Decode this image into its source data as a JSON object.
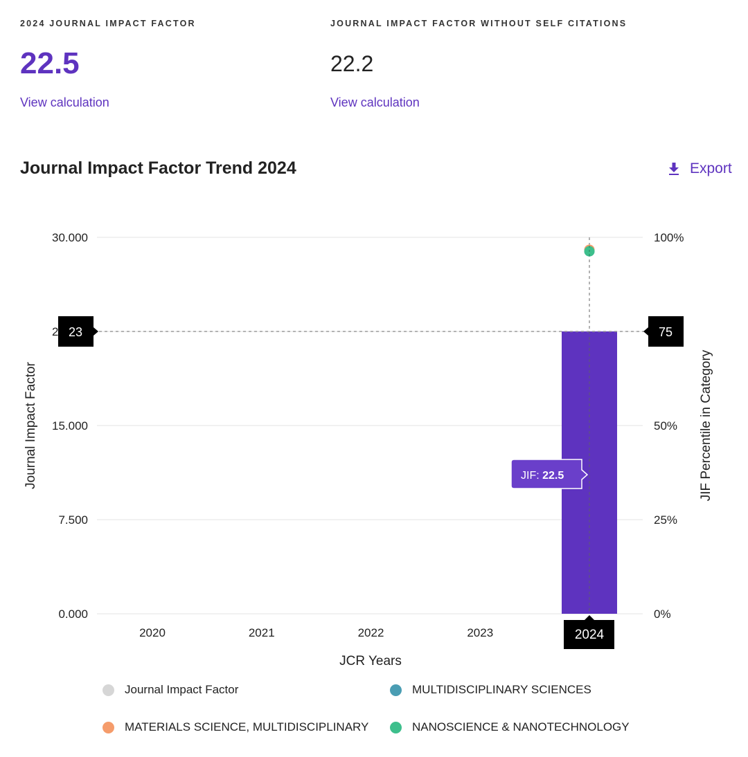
{
  "metrics": [
    {
      "label": "2024 JOURNAL IMPACT FACTOR",
      "value": "22.5",
      "link": "View calculation"
    },
    {
      "label": "JOURNAL IMPACT FACTOR WITHOUT SELF CITATIONS",
      "value": "22.2",
      "link": "View calculation"
    }
  ],
  "section": {
    "title": "Journal Impact Factor Trend 2024",
    "export_label": "Export",
    "export_icon": "download-icon"
  },
  "colors": {
    "accent": "#5e33bf",
    "bar": "#5e33bf",
    "legend_jif": "#d6d6d6",
    "multidisciplinary_sciences": "#4a9db3",
    "materials_science": "#f59c6b",
    "nanoscience": "#3dbf8c"
  },
  "chart_data": {
    "type": "bar",
    "title": "Journal Impact Factor Trend 2024",
    "xlabel": "JCR Years",
    "ylabel": "Journal Impact Factor",
    "y2label": "JIF Percentile in Category",
    "categories": [
      "2020",
      "2021",
      "2022",
      "2023",
      "2024"
    ],
    "ylim": [
      0,
      30
    ],
    "y_ticks": [
      "0.000",
      "7.500",
      "15.000",
      "22.500",
      "30.000"
    ],
    "y2lim": [
      0,
      100
    ],
    "y2_ticks": [
      "0%",
      "25%",
      "50%",
      "75%",
      "100%"
    ],
    "grid": true,
    "series": [
      {
        "name": "Journal Impact Factor",
        "kind": "bar",
        "values": [
          null,
          null,
          null,
          null,
          22.5
        ]
      },
      {
        "name": "MULTIDISCIPLINARY SCIENCES",
        "kind": "point",
        "axis": "y2",
        "values": [
          null,
          null,
          null,
          null,
          96.3
        ]
      },
      {
        "name": "MATERIALS SCIENCE, MULTIDISCIPLINARY",
        "kind": "point",
        "axis": "y2",
        "values": [
          null,
          null,
          null,
          null,
          96.7
        ]
      },
      {
        "name": "NANOSCIENCE & NANOTECHNOLOGY",
        "kind": "point",
        "axis": "y2",
        "values": [
          null,
          null,
          null,
          null,
          96.3
        ]
      }
    ],
    "legend": [
      {
        "label": "Journal Impact Factor",
        "color": "#d6d6d6"
      },
      {
        "label": "MULTIDISCIPLINARY SCIENCES",
        "color": "#4a9db3"
      },
      {
        "label": "MATERIALS SCIENCE, MULTIDISCIPLINARY",
        "color": "#f59c6b"
      },
      {
        "label": "NANOSCIENCE & NANOTECHNOLOGY",
        "color": "#3dbf8c"
      }
    ],
    "legend_position": "bottom",
    "crosshair": {
      "category": "2024",
      "left_label": "23",
      "right_label": "75",
      "tooltip_prefix": "JIF: ",
      "tooltip_value": "22.5"
    }
  }
}
